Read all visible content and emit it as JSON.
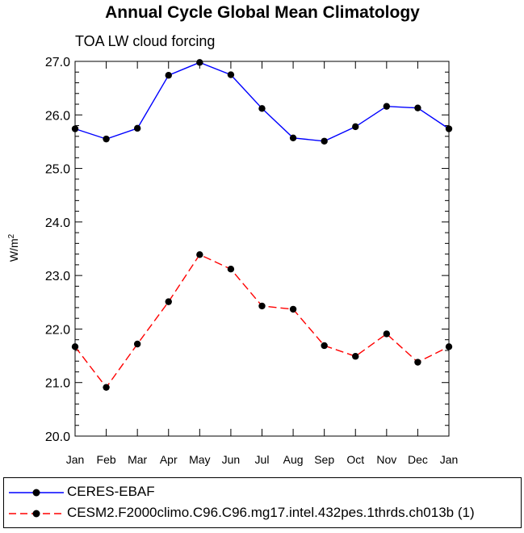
{
  "chart_data": {
    "type": "line",
    "title": "Annual Cycle Global Mean Climatology",
    "subtitle": "TOA LW cloud forcing",
    "xlabel": "",
    "ylabel": "W/m",
    "ylabel_superscript": "2",
    "categories": [
      "Jan",
      "Feb",
      "Mar",
      "Apr",
      "May",
      "Jun",
      "Jul",
      "Aug",
      "Sep",
      "Oct",
      "Nov",
      "Dec",
      "Jan"
    ],
    "ylim": [
      20.0,
      27.0
    ],
    "yticks": [
      "20.0",
      "21.0",
      "22.0",
      "23.0",
      "24.0",
      "25.0",
      "26.0",
      "27.0"
    ],
    "series": [
      {
        "name": "CERES-EBAF",
        "color": "#0000ff",
        "line_style": "solid",
        "marker": "filled-circle",
        "values": [
          25.74,
          25.55,
          25.75,
          26.74,
          26.98,
          26.75,
          26.12,
          25.57,
          25.51,
          25.78,
          26.16,
          26.13,
          25.74
        ]
      },
      {
        "name": "CESM2.F2000climo.C96.C96.mg17.intel.432pes.1thrds.ch013b (1)",
        "color": "#ff0000",
        "line_style": "dashed",
        "marker": "filled-circle",
        "values": [
          21.67,
          20.91,
          21.72,
          22.51,
          23.39,
          23.12,
          22.43,
          22.37,
          21.69,
          21.49,
          21.91,
          21.38,
          21.67
        ]
      }
    ],
    "grid": false,
    "legend_position": "bottom"
  }
}
